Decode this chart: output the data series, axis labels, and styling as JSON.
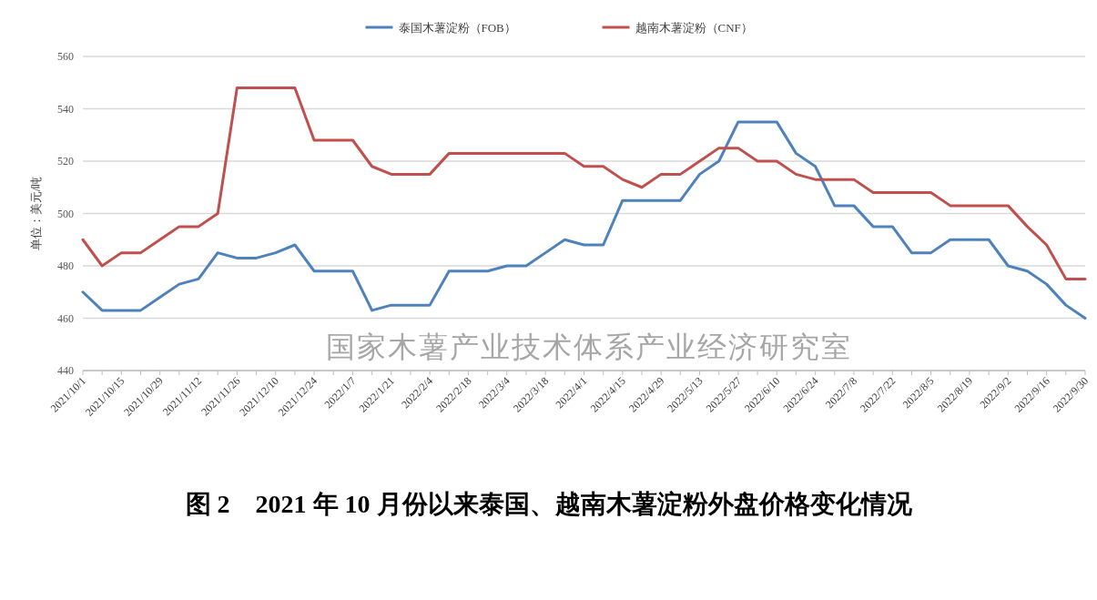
{
  "chart_data": {
    "type": "line",
    "title": "图 2　2021 年 10 月份以来泰国、越南木薯淀粉外盘价格变化情况",
    "ylabel": "单位：美元/吨",
    "annotations": [
      "国家木薯产业技术体系产业经济研究室"
    ],
    "categories": [
      "2021/10/1",
      null,
      "2021/10/15",
      null,
      "2021/10/29",
      null,
      "2021/11/12",
      null,
      "2021/11/26",
      null,
      "2021/12/10",
      null,
      "2021/12/24",
      null,
      "2022/1/7",
      null,
      "2022/1/21",
      null,
      "2022/2/4",
      null,
      "2022/2/18",
      null,
      "2022/3/4",
      null,
      "2022/3/18",
      null,
      "2022/4/1",
      null,
      "2022/4/15",
      null,
      "2022/4/29",
      null,
      "2022/5/13",
      null,
      "2022/5/27",
      null,
      "2022/6/10",
      null,
      "2022/6/24",
      null,
      "2022/7/8",
      null,
      "2022/7/22",
      null,
      "2022/8/5",
      null,
      "2022/8/19",
      null,
      "2022/9/2",
      null,
      "2022/9/16",
      null,
      "2022/9/30"
    ],
    "series": [
      {
        "name": "泰国木薯淀粉（FOB）",
        "color": "#4f81bd",
        "values": [
          470,
          463,
          463,
          463,
          468,
          473,
          475,
          485,
          483,
          483,
          485,
          488,
          478,
          478,
          478,
          463,
          465,
          465,
          465,
          478,
          478,
          478,
          480,
          480,
          485,
          490,
          488,
          488,
          505,
          505,
          505,
          505,
          515,
          520,
          535,
          535,
          535,
          523,
          518,
          503,
          503,
          495,
          495,
          485,
          485,
          490,
          490,
          490,
          480,
          478,
          473,
          465,
          460
        ]
      },
      {
        "name": "越南木薯淀粉（CNF）",
        "color": "#c0504d",
        "values": [
          490,
          480,
          485,
          485,
          490,
          495,
          495,
          500,
          548,
          548,
          548,
          548,
          528,
          528,
          528,
          518,
          515,
          515,
          515,
          523,
          523,
          523,
          523,
          523,
          523,
          523,
          518,
          518,
          513,
          510,
          515,
          515,
          520,
          525,
          525,
          520,
          520,
          515,
          513,
          513,
          513,
          508,
          508,
          508,
          508,
          503,
          503,
          503,
          503,
          495,
          488,
          475,
          475
        ]
      }
    ],
    "ylim": [
      440,
      560
    ],
    "yticks": [
      440,
      460,
      480,
      500,
      520,
      540,
      560
    ],
    "grid": "y",
    "legend": "top"
  }
}
